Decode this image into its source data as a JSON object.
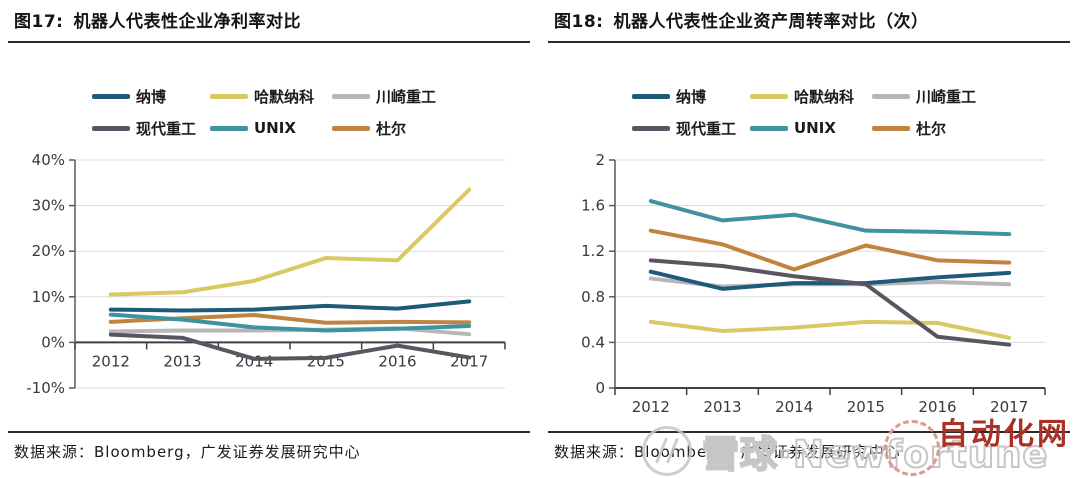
{
  "page": {
    "background": "#ffffff"
  },
  "watermark": {
    "snowball_text": "雪球·Newfortune",
    "snowball_color": "#c6c6c6",
    "automation_text": "自动化网",
    "automation_color": "#a93226"
  },
  "panels": [
    {
      "title_prefix": "图17:",
      "title": "机器人代表性企业净利率对比",
      "footer": "数据来源：Bloomberg，广发证券发展研究中心",
      "legend": [
        {
          "label": "纳博",
          "color": "#1e5b78"
        },
        {
          "label": "哈默纳科",
          "color": "#d7ca63"
        },
        {
          "label": "川崎重工",
          "color": "#b7b7b7"
        },
        {
          "label": "现代重工",
          "color": "#5a5560"
        },
        {
          "label": "UNIX",
          "color": "#3f93a0"
        },
        {
          "label": "杜尔",
          "color": "#c08440"
        }
      ],
      "chart_data": {
        "type": "line",
        "title": "机器人代表性企业净利率对比",
        "xlabel": "",
        "ylabel": "",
        "unit": "%",
        "grid": true,
        "legend_position": "top",
        "categories": [
          "2012",
          "2013",
          "2014",
          "2015",
          "2016",
          "2017"
        ],
        "ylim": [
          -10,
          40
        ],
        "yticks": [
          {
            "v": 40,
            "label": "40%"
          },
          {
            "v": 30,
            "label": "30%"
          },
          {
            "v": 20,
            "label": "20%"
          },
          {
            "v": 10,
            "label": "10%"
          },
          {
            "v": 0,
            "label": "0%"
          },
          {
            "v": -10,
            "label": "-10%"
          }
        ],
        "series": [
          {
            "name": "川崎重工",
            "color": "#b7b7b7",
            "values": [
              2.4,
              2.6,
              2.6,
              2.8,
              3.1,
              1.8
            ]
          },
          {
            "name": "哈默纳科",
            "color": "#d7ca63",
            "values": [
              10.5,
              11.0,
              13.5,
              18.5,
              18.0,
              33.5
            ]
          },
          {
            "name": "杜尔",
            "color": "#c08440",
            "values": [
              4.5,
              5.3,
              6.0,
              4.3,
              4.5,
              4.4
            ]
          },
          {
            "name": "UNIX",
            "color": "#3f93a0",
            "values": [
              6.1,
              5.0,
              3.3,
              2.6,
              3.0,
              3.6
            ]
          },
          {
            "name": "纳博",
            "color": "#1e5b78",
            "values": [
              7.2,
              7.0,
              7.2,
              8.0,
              7.4,
              9.0
            ]
          },
          {
            "name": "现代重工",
            "color": "#5a5560",
            "values": [
              1.7,
              1.0,
              -3.6,
              -3.4,
              -0.7,
              -3.3
            ]
          }
        ]
      }
    },
    {
      "title_prefix": "图18:",
      "title": "机器人代表性企业资产周转率对比（次）",
      "footer": "数据来源：Bloomberg，广发证券发展研究中心",
      "legend": [
        {
          "label": "纳博",
          "color": "#1e5b78"
        },
        {
          "label": "哈默纳科",
          "color": "#d7ca63"
        },
        {
          "label": "川崎重工",
          "color": "#b7b7b7"
        },
        {
          "label": "现代重工",
          "color": "#5a5560"
        },
        {
          "label": "UNIX",
          "color": "#3f93a0"
        },
        {
          "label": "杜尔",
          "color": "#c08440"
        }
      ],
      "chart_data": {
        "type": "line",
        "title": "机器人代表性企业资产周转率对比（次）",
        "xlabel": "",
        "ylabel": "",
        "unit": "次",
        "grid": true,
        "legend_position": "top",
        "categories": [
          "2012",
          "2013",
          "2014",
          "2015",
          "2016",
          "2017"
        ],
        "ylim": [
          0,
          2
        ],
        "yticks": [
          {
            "v": 2,
            "label": "2"
          },
          {
            "v": 1.6,
            "label": "1.6"
          },
          {
            "v": 1.2,
            "label": "1.2"
          },
          {
            "v": 0.8,
            "label": "0.8"
          },
          {
            "v": 0.4,
            "label": "0.4"
          },
          {
            "v": 0,
            "label": "0"
          }
        ],
        "series": [
          {
            "name": "川崎重工",
            "color": "#b7b7b7",
            "values": [
              0.96,
              0.89,
              0.91,
              0.91,
              0.93,
              0.91
            ]
          },
          {
            "name": "哈默纳科",
            "color": "#d7ca63",
            "values": [
              0.58,
              0.5,
              0.53,
              0.58,
              0.57,
              0.44
            ]
          },
          {
            "name": "杜尔",
            "color": "#c08440",
            "values": [
              1.38,
              1.26,
              1.04,
              1.25,
              1.12,
              1.1
            ]
          },
          {
            "name": "UNIX",
            "color": "#3f93a0",
            "values": [
              1.64,
              1.47,
              1.52,
              1.38,
              1.37,
              1.35
            ]
          },
          {
            "name": "纳博",
            "color": "#1e5b78",
            "values": [
              1.02,
              0.87,
              0.92,
              0.92,
              0.97,
              1.01
            ]
          },
          {
            "name": "现代重工",
            "color": "#5a5560",
            "values": [
              1.12,
              1.07,
              0.98,
              0.91,
              0.45,
              0.38
            ]
          }
        ]
      }
    }
  ]
}
